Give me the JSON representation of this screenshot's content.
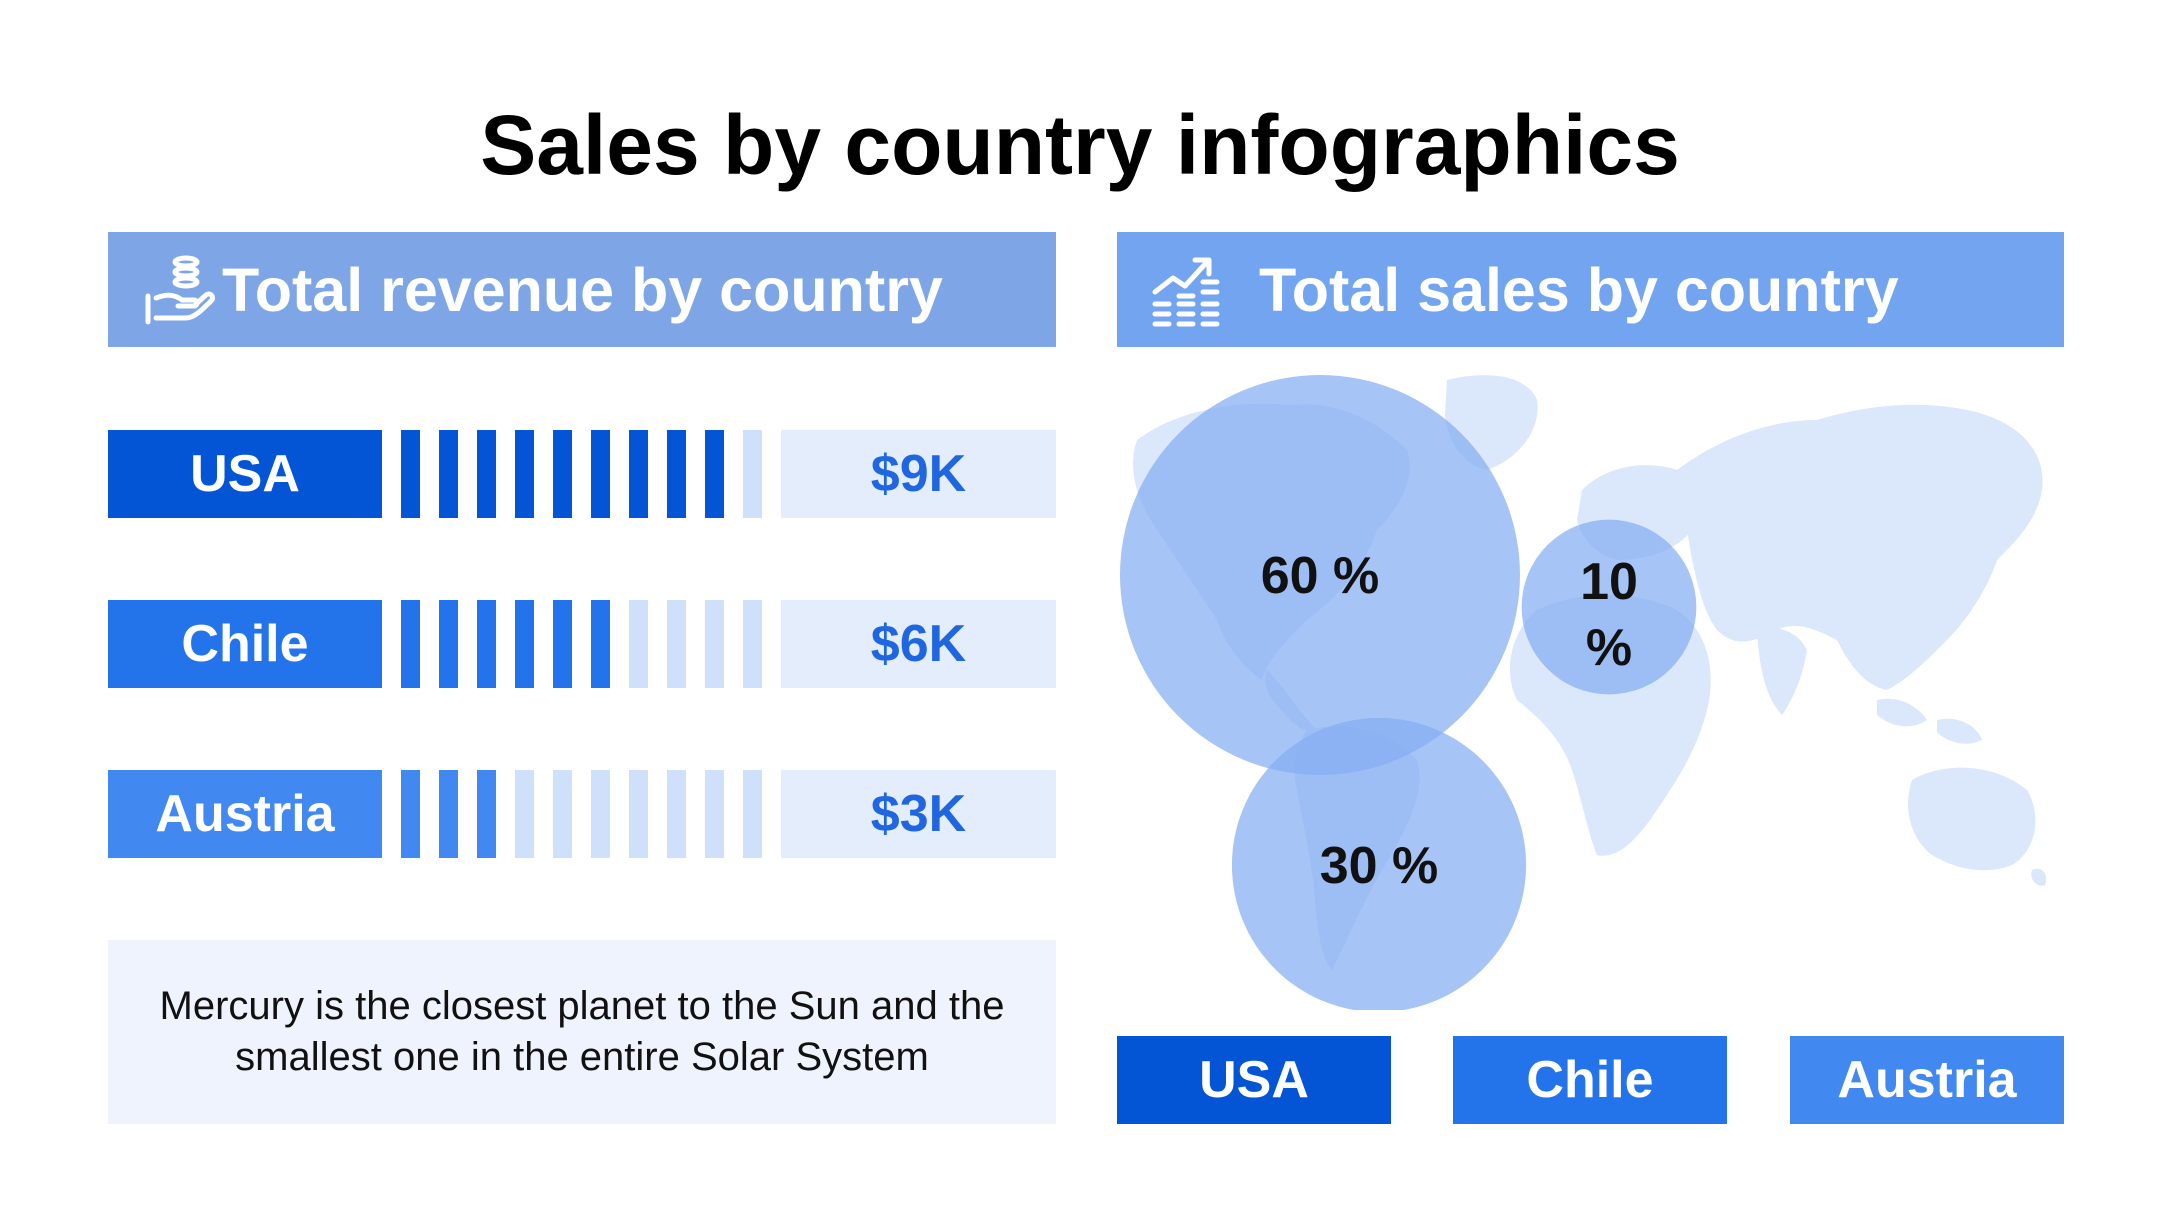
{
  "title": "Sales by country infographics",
  "left_panel": {
    "header": "Total revenue by country",
    "icon": "money-hand-icon",
    "note": "Mercury is the closest planet to the Sun and the smallest one in the entire Solar System"
  },
  "right_panel": {
    "header": "Total sales by country",
    "icon": "growth-chart-icon"
  },
  "colors": {
    "usa": "#0355d6",
    "chile": "#2373eb",
    "austria": "#4188f0",
    "bar_empty": "#cfe0fa",
    "value_text": "#1f66e0",
    "bubble": "#85adf2",
    "map": "#dbe7fb"
  },
  "chart_data": [
    {
      "type": "bar",
      "title": "Total revenue by country",
      "categories": [
        "USA",
        "Chile",
        "Austria"
      ],
      "values": [
        9,
        6,
        3
      ],
      "max": 10,
      "value_labels": [
        "$9K",
        "$6K",
        "$3K"
      ]
    },
    {
      "type": "scatter",
      "title": "Total sales by country",
      "categories": [
        "USA",
        "Chile",
        "Austria"
      ],
      "values": [
        60,
        10,
        30
      ],
      "value_labels": [
        "60 %",
        "10 %",
        "30 %"
      ]
    }
  ]
}
